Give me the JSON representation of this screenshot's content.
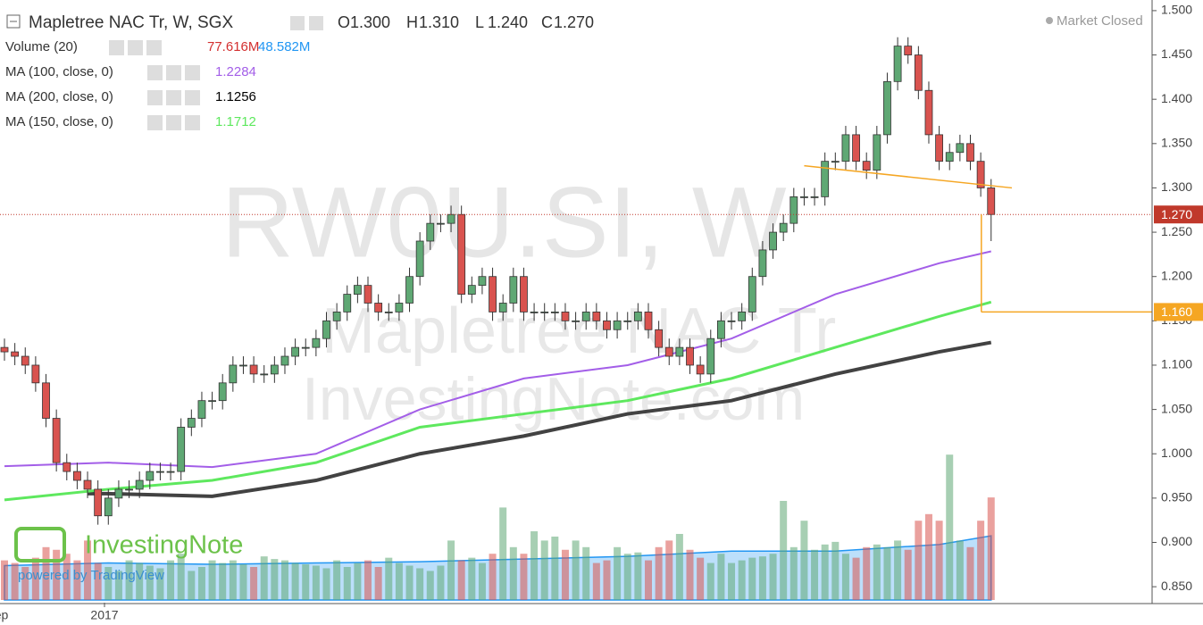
{
  "chart_data": {
    "type": "candlestick",
    "title": "Mapletree NAC Tr, W, SGX",
    "status": "Market Closed",
    "ohlc_letters": [
      "O",
      "H",
      "L",
      "C"
    ],
    "ohlc_labels": [
      "1.300",
      "1.310",
      "1.240",
      "1.270"
    ],
    "up_color": "#5fa874",
    "down_color": "#d9534f",
    "open": [
      1.12,
      1.115,
      1.11,
      1.1,
      1.08,
      1.04,
      0.99,
      0.98,
      0.97,
      0.96,
      0.93,
      0.95,
      0.96,
      0.96,
      0.97,
      0.98,
      0.98,
      0.98,
      1.03,
      1.04,
      1.06,
      1.06,
      1.08,
      1.1,
      1.1,
      1.09,
      1.09,
      1.1,
      1.11,
      1.12,
      1.12,
      1.13,
      1.15,
      1.16,
      1.18,
      1.19,
      1.17,
      1.16,
      1.16,
      1.17,
      1.2,
      1.24,
      1.26,
      1.26,
      1.27,
      1.18,
      1.19,
      1.2,
      1.16,
      1.17,
      1.2,
      1.16,
      1.16,
      1.16,
      1.16,
      1.15,
      1.15,
      1.16,
      1.15,
      1.14,
      1.15,
      1.15,
      1.16,
      1.14,
      1.12,
      1.11,
      1.12,
      1.1,
      1.09,
      1.13,
      1.15,
      1.15,
      1.16,
      1.2,
      1.23,
      1.25,
      1.26,
      1.29,
      1.29,
      1.29,
      1.33,
      1.33,
      1.36,
      1.33,
      1.32,
      1.36,
      1.42,
      1.46,
      1.45,
      1.41,
      1.36,
      1.33,
      1.34,
      1.35,
      1.33,
      1.3
    ],
    "high": [
      1.13,
      1.125,
      1.12,
      1.11,
      1.09,
      1.05,
      1.0,
      0.99,
      0.98,
      0.97,
      0.96,
      0.97,
      0.97,
      0.98,
      0.99,
      0.99,
      0.99,
      1.04,
      1.05,
      1.07,
      1.07,
      1.09,
      1.11,
      1.11,
      1.11,
      1.1,
      1.11,
      1.12,
      1.13,
      1.13,
      1.14,
      1.16,
      1.17,
      1.19,
      1.2,
      1.2,
      1.18,
      1.17,
      1.18,
      1.21,
      1.25,
      1.27,
      1.27,
      1.28,
      1.28,
      1.2,
      1.21,
      1.21,
      1.18,
      1.21,
      1.21,
      1.17,
      1.17,
      1.17,
      1.17,
      1.16,
      1.17,
      1.17,
      1.16,
      1.16,
      1.16,
      1.17,
      1.17,
      1.15,
      1.13,
      1.13,
      1.13,
      1.11,
      1.14,
      1.16,
      1.16,
      1.17,
      1.21,
      1.24,
      1.26,
      1.27,
      1.3,
      1.3,
      1.3,
      1.34,
      1.34,
      1.37,
      1.37,
      1.34,
      1.37,
      1.43,
      1.47,
      1.47,
      1.46,
      1.42,
      1.37,
      1.35,
      1.36,
      1.36,
      1.34,
      1.31
    ],
    "low": [
      1.105,
      1.1,
      1.09,
      1.07,
      1.03,
      0.98,
      0.97,
      0.96,
      0.95,
      0.92,
      0.92,
      0.94,
      0.95,
      0.95,
      0.96,
      0.97,
      0.97,
      0.97,
      1.02,
      1.03,
      1.05,
      1.05,
      1.07,
      1.09,
      1.08,
      1.08,
      1.08,
      1.09,
      1.1,
      1.11,
      1.11,
      1.12,
      1.14,
      1.15,
      1.17,
      1.16,
      1.15,
      1.15,
      1.15,
      1.16,
      1.19,
      1.23,
      1.25,
      1.25,
      1.17,
      1.17,
      1.18,
      1.15,
      1.15,
      1.16,
      1.15,
      1.15,
      1.15,
      1.15,
      1.14,
      1.14,
      1.14,
      1.14,
      1.13,
      1.13,
      1.14,
      1.14,
      1.13,
      1.11,
      1.1,
      1.1,
      1.09,
      1.08,
      1.08,
      1.12,
      1.14,
      1.14,
      1.15,
      1.19,
      1.22,
      1.24,
      1.25,
      1.28,
      1.28,
      1.28,
      1.32,
      1.32,
      1.32,
      1.31,
      1.31,
      1.35,
      1.41,
      1.44,
      1.4,
      1.35,
      1.32,
      1.32,
      1.33,
      1.32,
      1.29,
      1.24
    ],
    "close": [
      1.115,
      1.11,
      1.1,
      1.08,
      1.04,
      0.99,
      0.98,
      0.97,
      0.96,
      0.93,
      0.95,
      0.96,
      0.96,
      0.97,
      0.98,
      0.98,
      0.98,
      1.03,
      1.04,
      1.06,
      1.06,
      1.08,
      1.1,
      1.1,
      1.09,
      1.09,
      1.1,
      1.11,
      1.12,
      1.12,
      1.13,
      1.15,
      1.16,
      1.18,
      1.19,
      1.17,
      1.16,
      1.16,
      1.17,
      1.2,
      1.24,
      1.26,
      1.26,
      1.27,
      1.18,
      1.19,
      1.2,
      1.16,
      1.17,
      1.2,
      1.16,
      1.16,
      1.16,
      1.16,
      1.15,
      1.15,
      1.16,
      1.15,
      1.14,
      1.15,
      1.15,
      1.16,
      1.14,
      1.12,
      1.11,
      1.12,
      1.1,
      1.09,
      1.13,
      1.15,
      1.15,
      1.16,
      1.2,
      1.23,
      1.25,
      1.26,
      1.29,
      1.29,
      1.29,
      1.33,
      1.33,
      1.36,
      1.33,
      1.32,
      1.36,
      1.42,
      1.46,
      1.45,
      1.41,
      1.36,
      1.33,
      1.34,
      1.35,
      1.33,
      1.3,
      1.27
    ],
    "volume": {
      "name": "Volume (20)",
      "values": [
        30,
        28,
        25,
        32,
        40,
        38,
        35,
        30,
        45,
        28,
        25,
        22,
        30,
        28,
        26,
        24,
        30,
        35,
        22,
        25,
        30,
        28,
        30,
        27,
        25,
        33,
        31,
        30,
        28,
        27,
        26,
        24,
        30,
        25,
        28,
        30,
        25,
        32,
        28,
        26,
        24,
        22,
        26,
        45,
        30,
        32,
        28,
        35,
        70,
        40,
        35,
        52,
        45,
        48,
        38,
        45,
        40,
        28,
        30,
        40,
        35,
        36,
        30,
        40,
        45,
        50,
        38,
        32,
        28,
        35,
        28,
        30,
        32,
        33,
        35,
        75,
        40,
        60,
        38,
        42,
        44,
        35,
        32,
        40,
        42,
        40,
        45,
        38,
        60,
        65,
        60,
        110,
        45,
        40,
        60,
        77.616
      ],
      "value_label": "77.616M",
      "value_label_color": "#d32f2f",
      "ma": {
        "x": [
          0,
          10,
          20,
          30,
          40,
          50,
          60,
          70,
          80,
          90,
          95
        ],
        "values": [
          26,
          28,
          27,
          28,
          29,
          31,
          33,
          37,
          37,
          42,
          48.582
        ],
        "value_label": "48.582M",
        "color": "#2196f3"
      }
    },
    "series": [
      {
        "name": "MA (100, close, 0)",
        "color": "#a35ee8",
        "width": 2,
        "x": [
          0,
          10,
          20,
          30,
          40,
          50,
          60,
          70,
          80,
          90,
          95
        ],
        "values": [
          0.986,
          0.99,
          0.985,
          1.0,
          1.05,
          1.085,
          1.1,
          1.13,
          1.18,
          1.215,
          1.2284
        ],
        "value_label": "1.2284"
      },
      {
        "name": "MA (200, close, 0)",
        "color": "#424242",
        "width": 4,
        "x": [
          8,
          10,
          20,
          30,
          40,
          50,
          60,
          70,
          80,
          90,
          95
        ],
        "values": [
          0.955,
          0.955,
          0.952,
          0.97,
          1.0,
          1.02,
          1.045,
          1.06,
          1.09,
          1.115,
          1.1256
        ],
        "value_label": "1.1256"
      },
      {
        "name": "MA (150, close, 0)",
        "color": "#5ee85e",
        "width": 3,
        "x": [
          0,
          10,
          20,
          30,
          40,
          50,
          60,
          70,
          80,
          90,
          95
        ],
        "values": [
          0.948,
          0.96,
          0.97,
          0.99,
          1.03,
          1.045,
          1.06,
          1.085,
          1.12,
          1.155,
          1.1712
        ],
        "value_label": "1.1712"
      }
    ],
    "xlim": [
      -0.43,
      110.5
    ],
    "xticks": [
      {
        "value": -0.7,
        "label": "Sep"
      },
      {
        "value": 9.63,
        "label": "2017"
      }
    ],
    "ylim": [
      0.832,
      1.512
    ],
    "yticks": [
      {
        "value": 0.85,
        "label": "0.850"
      },
      {
        "value": 0.9,
        "label": "0.900"
      },
      {
        "value": 0.95,
        "label": "0.950"
      },
      {
        "value": 1.0,
        "label": "1.000"
      },
      {
        "value": 1.05,
        "label": "1.050"
      },
      {
        "value": 1.1,
        "label": "1.100"
      },
      {
        "value": 1.15,
        "label": "1.150"
      },
      {
        "value": 1.2,
        "label": "1.200"
      },
      {
        "value": 1.25,
        "label": "1.250"
      },
      {
        "value": 1.3,
        "label": "1.300"
      },
      {
        "value": 1.35,
        "label": "1.350"
      },
      {
        "value": 1.4,
        "label": "1.400"
      },
      {
        "value": 1.45,
        "label": "1.450"
      },
      {
        "value": 1.5,
        "label": "1.500"
      }
    ],
    "last_price": {
      "value": 1.27,
      "label": "1.270",
      "color": "#c0392b"
    },
    "target": {
      "x": 94.06,
      "value": 1.16,
      "label": "1.160",
      "color": "#f5a623"
    },
    "trendline": {
      "x": [
        77,
        97
      ],
      "values": [
        1.325,
        1.3
      ],
      "color": "#f5a623"
    },
    "watermarks": [
      "RW0U.SI, W",
      "Mapletree NAC Tr",
      "InvestingNote.com"
    ],
    "brand": "InvestingNote",
    "powered": "powered by TradingView"
  }
}
